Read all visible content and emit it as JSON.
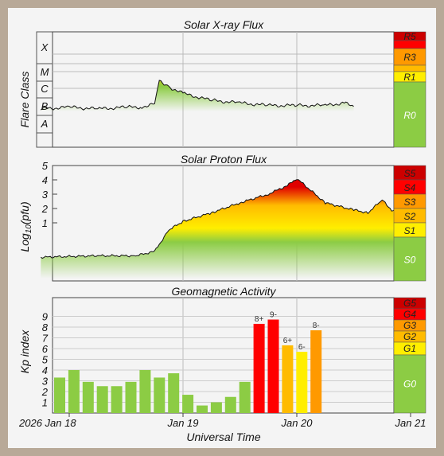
{
  "chart_data": [
    {
      "type": "area",
      "title": "Solar X-ray Flux",
      "ylabel": "Flare Class",
      "y_classes": [
        "A",
        "B",
        "C",
        "M",
        "X"
      ],
      "x": [
        "Jan 17 18:00",
        "Jan 18 00:00",
        "Jan 18 06:00",
        "Jan 18 12:00",
        "Jan 18 15:00",
        "Jan 18 18:00",
        "Jan 18 19:00",
        "Jan 18 21:00",
        "Jan 19 00:00",
        "Jan 19 06:00",
        "Jan 19 12:00",
        "Jan 19 18:00",
        "Jan 20 00:00",
        "Jan 20 06:00",
        "Jan 20 10:00",
        "Jan 20 12:00"
      ],
      "values": [
        2.4,
        2.5,
        2.4,
        2.5,
        2.5,
        2.7,
        4.1,
        3.7,
        3.3,
        2.9,
        2.75,
        2.6,
        2.6,
        2.6,
        2.75,
        2.55
      ],
      "scale": [
        "R5",
        "R3",
        "R1",
        "R0"
      ]
    },
    {
      "type": "area",
      "title": "Solar Proton Flux",
      "ylabel": "Log10(pfu)",
      "yticks": [
        1,
        2,
        3,
        4,
        5
      ],
      "ylim": [
        -2,
        6
      ],
      "x": [
        "Jan 17 18:00",
        "Jan 18 06:00",
        "Jan 18 14:00",
        "Jan 18 18:00",
        "Jan 18 21:00",
        "Jan 19 00:00",
        "Jan 19 06:00",
        "Jan 19 12:00",
        "Jan 19 18:00",
        "Jan 19 20:00",
        "Jan 19 22:00",
        "Jan 20 00:00",
        "Jan 20 06:00",
        "Jan 20 12:00",
        "Jan 20 15:00",
        "Jan 20 18:00",
        "Jan 20 20:00",
        "Jan 20 22:00"
      ],
      "values": [
        -1.4,
        -1.3,
        -1.3,
        -1.0,
        0.5,
        1.1,
        1.7,
        2.4,
        3.0,
        3.3,
        3.6,
        4.1,
        2.4,
        1.9,
        1.7,
        2.6,
        1.9,
        1.7
      ],
      "scale": [
        "S5",
        "S4",
        "S3",
        "S2",
        "S1",
        "S0"
      ]
    },
    {
      "type": "bar",
      "title": "Geomagnetic Activity",
      "ylabel": "Kp index",
      "ylim": [
        0,
        10
      ],
      "yticks": [
        1,
        2,
        3,
        4,
        5,
        6,
        7,
        8,
        9
      ],
      "xlabel": "Universal Time",
      "x_ticks": [
        "2026 Jan 18",
        "Jan 19",
        "Jan 20",
        "Jan 21"
      ],
      "values": [
        3.3,
        4.0,
        2.9,
        2.5,
        2.5,
        2.9,
        4.0,
        3.3,
        3.7,
        1.7,
        0.7,
        1.0,
        1.5,
        2.9,
        8.3,
        8.7,
        6.3,
        5.7,
        7.7
      ],
      "value_labels": [
        "",
        "",
        "",
        "",
        "",
        "",
        "",
        "",
        "",
        "",
        "",
        "",
        "",
        "",
        "8+",
        "9-",
        "6+",
        "6-",
        "8-"
      ],
      "scale": [
        "G5",
        "G4",
        "G3",
        "G2",
        "G1",
        "G0"
      ]
    }
  ],
  "colors": {
    "r5": "#cc0000",
    "r4": "#ff0000",
    "r3": "#ff9900",
    "r2": "#ffbb00",
    "r1": "#ffee00",
    "r0": "#8ccc44",
    "grid": "#bbbbbb",
    "text": "#111111"
  }
}
